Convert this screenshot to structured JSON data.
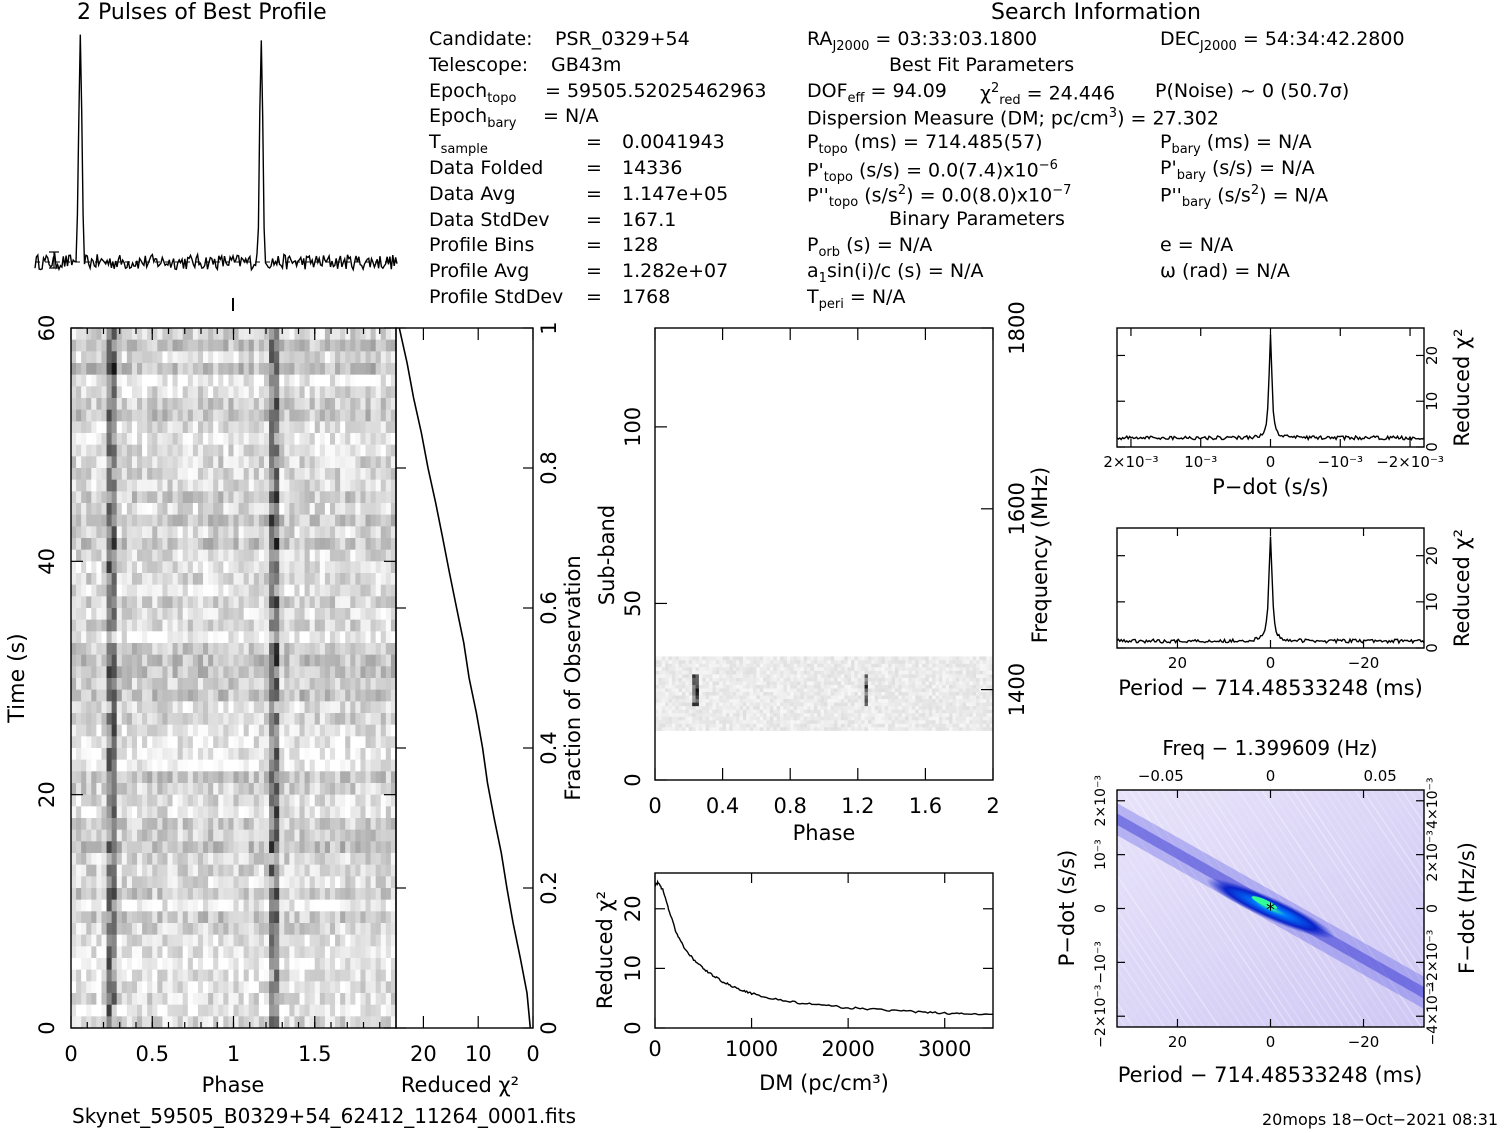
{
  "header": {
    "profile_title": "2 Pulses of Best Profile",
    "search_title": "Search Information"
  },
  "candidate_info": [
    {
      "key": "Candidate:",
      "eq": "",
      "value": "PSR_0329+54"
    },
    {
      "key": "Telescope:",
      "eq": "",
      "value": "GB43m"
    },
    {
      "key": "Epoch",
      "sub": "topo",
      "eq": "",
      "value": "= 59505.52025462963"
    },
    {
      "key": "Epoch",
      "sub": "bary",
      "eq": "",
      "value": "= N/A"
    },
    {
      "key": "T",
      "sub": "sample",
      "eq": "=",
      "value": "0.0041943"
    },
    {
      "key": "Data Folded",
      "eq": "=",
      "value": "14336"
    },
    {
      "key": "Data Avg",
      "eq": "=",
      "value": "1.147e+05"
    },
    {
      "key": "Data StdDev",
      "eq": "=",
      "value": "167.1"
    },
    {
      "key": "Profile Bins",
      "eq": "=",
      "value": "128"
    },
    {
      "key": "Profile Avg",
      "eq": "=",
      "value": "1.282e+07"
    },
    {
      "key": "Profile StdDev",
      "eq": "=",
      "value": "1768"
    }
  ],
  "search_info": {
    "ra": "RA",
    "ra_sub": "J2000",
    "ra_value": "= 03:33:03.1800",
    "dec": "DEC",
    "dec_sub": "J2000",
    "dec_value": "= 54:34:42.2800",
    "best_fit_title": "Best Fit Parameters",
    "dof": "DOF",
    "dof_sub": "eff",
    "dof_value": "= 94.09",
    "chi": "χ",
    "chi_sup": "2",
    "chi_sub": "red",
    "chi_value": "= 24.446",
    "pnoise": "P(Noise) ~ 0   (50.7σ)",
    "dm_line": "Dispersion Measure (DM; pc/cm",
    "dm_sup": "3",
    "dm_value": ") = 27.302",
    "ptopo": "P",
    "ptopo_sub": "topo",
    "ptopo_value": "(ms) =  714.485(57)",
    "pbary": "P",
    "pbary_sub": "bary",
    "pbary_value": "(ms) = N/A",
    "pdtopo": "P'",
    "pdtopo_sub": "topo",
    "pdtopo_value": "(s/s) = 0.0(7.4)x10",
    "pdtopo_exp": "−6",
    "pdbary": "P'",
    "pdbary_sub": "bary",
    "pdbary_value": "(s/s) = N/A",
    "pddtopo": "P''",
    "pddtopo_sub": "topo",
    "pddtopo_value": "(s/s",
    "pddtopo_sup": "2",
    "pddtopo_value2": ") = 0.0(8.0)x10",
    "pddtopo_exp": "−7",
    "pddbary": "P''",
    "pddbary_sub": "bary",
    "pddbary_value": "(s/s",
    "pddbary_sup": "2",
    "pddbary_value2": ") = N/A",
    "binary_title": "Binary Parameters",
    "porb": "P",
    "porb_sub": "orb",
    "porb_value": "(s) = N/A",
    "e_value": "e = N/A",
    "a1": "a",
    "a1_sub": "1",
    "a1_value": "sin(i)/c (s) = N/A",
    "omega_value": "ω (rad) = N/A",
    "tperi": "T",
    "tperi_sub": "peri",
    "tperi_value": "= N/A"
  },
  "footer": {
    "filename": "Skynet_59505_B0329+54_62412_11264_0001.fits",
    "stamp": "20mops 18−Oct−2021 08:31"
  },
  "chart_data": [
    {
      "type": "line",
      "title": "2 Pulses of Best Profile",
      "x_range": [
        0,
        2
      ],
      "series": [
        {
          "values_description_note": null,
          "pulse_phase": [
            0.25,
            1.25
          ],
          "pulse_peak_relative": 1.0,
          "baseline_relative": 0.0
        }
      ]
    },
    {
      "type": "heatmap",
      "xlabel": "Phase",
      "ylabel": "Time (s)",
      "x_range": [
        0,
        2
      ],
      "y_range": [
        0,
        60
      ],
      "x_ticks": [
        "0",
        "0.5",
        "1",
        "1.5"
      ],
      "y_ticks": [
        "0",
        "20",
        "40",
        "60"
      ],
      "pulse_phases": [
        0.25,
        1.25
      ]
    },
    {
      "type": "line",
      "xlabel": "Reduced χ²",
      "ylabel": "Fraction of Observation",
      "x_range": [
        25,
        0
      ],
      "y_range": [
        0,
        1
      ],
      "x_ticks": [
        "20",
        "10",
        "0"
      ],
      "y_ticks": [
        "0",
        "0.2",
        "0.4",
        "0.6",
        "0.8",
        "1"
      ],
      "points": [
        [
          0.5,
          0.0
        ],
        [
          1.2,
          0.05
        ],
        [
          2.3,
          0.1
        ],
        [
          3.5,
          0.15
        ],
        [
          4.6,
          0.2
        ],
        [
          5.8,
          0.25
        ],
        [
          7.0,
          0.3
        ],
        [
          8.2,
          0.35
        ],
        [
          9.3,
          0.4
        ],
        [
          10.5,
          0.45
        ],
        [
          11.6,
          0.5
        ],
        [
          12.8,
          0.55
        ],
        [
          14.0,
          0.6
        ],
        [
          15.2,
          0.65
        ],
        [
          16.4,
          0.7
        ],
        [
          17.8,
          0.75
        ],
        [
          19.0,
          0.8
        ],
        [
          20.4,
          0.85
        ],
        [
          21.8,
          0.9
        ],
        [
          23.0,
          0.95
        ],
        [
          24.4,
          1.0
        ]
      ]
    },
    {
      "type": "heatmap",
      "xlabel": "Phase",
      "ylabel": "Sub-band",
      "y2label": "Frequency (MHz)",
      "x_range": [
        0,
        2
      ],
      "y_range": [
        0,
        128
      ],
      "y2_range": [
        1300,
        1800
      ],
      "x_ticks": [
        "0",
        "0.4",
        "0.8",
        "1.2",
        "1.6",
        "2"
      ],
      "y_ticks": [
        "0",
        "50",
        "100"
      ],
      "y2_ticks": [
        "1400",
        "1600",
        "1800"
      ],
      "active_subbands": [
        14,
        35
      ],
      "pulse_phases": [
        0.25,
        1.25
      ]
    },
    {
      "type": "line",
      "xlabel": "DM (pc/cm³)",
      "ylabel": "Reduced χ²",
      "x_range": [
        0,
        3500
      ],
      "y_range": [
        0,
        26
      ],
      "x_ticks": [
        "0",
        "1000",
        "2000",
        "3000"
      ],
      "y_ticks": [
        "0",
        "10",
        "20"
      ],
      "points": [
        [
          0,
          24.0
        ],
        [
          27,
          24.4
        ],
        [
          80,
          23.2
        ],
        [
          150,
          19.5
        ],
        [
          220,
          16.0
        ],
        [
          300,
          13.5
        ],
        [
          400,
          11.5
        ],
        [
          500,
          10.0
        ],
        [
          600,
          8.8
        ],
        [
          700,
          7.8
        ],
        [
          800,
          7.0
        ],
        [
          900,
          6.3
        ],
        [
          1000,
          5.8
        ],
        [
          1200,
          5.0
        ],
        [
          1400,
          4.4
        ],
        [
          1600,
          4.0
        ],
        [
          1800,
          3.7
        ],
        [
          2000,
          3.4
        ],
        [
          2200,
          3.2
        ],
        [
          2400,
          3.0
        ],
        [
          2600,
          2.8
        ],
        [
          2800,
          2.6
        ],
        [
          3000,
          2.5
        ],
        [
          3200,
          2.4
        ],
        [
          3500,
          2.3
        ]
      ]
    },
    {
      "type": "line",
      "xlabel": "P−dot (s/s)",
      "ylabel": "Reduced χ²",
      "x_range": [
        0.0022,
        -0.0022
      ],
      "y_range": [
        0,
        26
      ],
      "x_ticks": [
        "2×10⁻³",
        "10⁻³",
        "0",
        "−10⁻³",
        "−2×10⁻³"
      ],
      "y_ticks": [
        "0",
        "10",
        "20"
      ],
      "peak": [
        0,
        24.4
      ],
      "baseline": 2.0
    },
    {
      "type": "line",
      "xlabel": "Period − 714.48533248 (ms)",
      "ylabel": "Reduced χ²",
      "x_range": [
        33,
        -33
      ],
      "y_range": [
        0,
        26
      ],
      "x_ticks": [
        "20",
        "0",
        "−20"
      ],
      "y_ticks": [
        "0",
        "10",
        "20"
      ],
      "peak": [
        0,
        24.4
      ],
      "baseline": 1.5
    },
    {
      "type": "heatmap",
      "title": "Freq − 1.399609 (Hz)",
      "xlabel": "Period − 714.48533248 (ms)",
      "ylabel": "P−dot (s/s)",
      "y2label": "F−dot (Hz/s)",
      "x_range": [
        33,
        -33
      ],
      "y_range": [
        0.0022,
        -0.0022
      ],
      "x_ticks": [
        "20",
        "0",
        "−20"
      ],
      "x2_ticks": [
        "−0.05",
        "0",
        "0.05"
      ],
      "y_ticks": [
        "2×10⁻³",
        "10⁻³",
        "0",
        "−10⁻³",
        "−2×10⁻³"
      ],
      "y2_ticks": [
        "−4×10⁻³",
        "−2×10⁻³",
        "0",
        "2×10⁻³",
        "4×10⁻³"
      ],
      "best_fit": [
        0,
        0
      ]
    }
  ]
}
